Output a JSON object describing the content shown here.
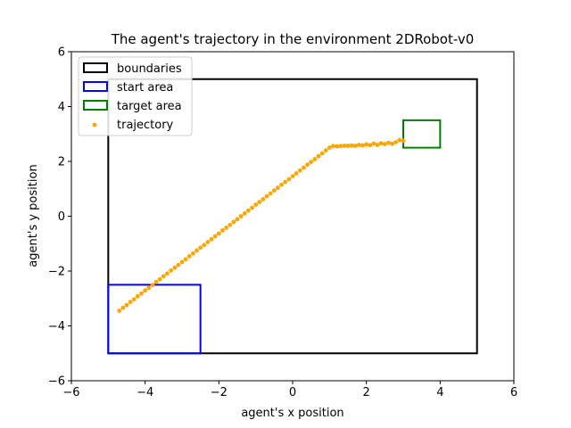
{
  "chart_data": {
    "type": "scatter",
    "title": "The agent's trajectory in the environment 2DRobot-v0",
    "xlabel": "agent's x position",
    "ylabel": "agent's y position",
    "xlim": [
      -6,
      6
    ],
    "ylim": [
      -6,
      6
    ],
    "xticks": [
      -6,
      -4,
      -2,
      0,
      2,
      4,
      6
    ],
    "yticks": [
      -6,
      -4,
      -2,
      0,
      2,
      4,
      6
    ],
    "xtick_labels": [
      "−6",
      "−4",
      "−2",
      "0",
      "2",
      "4",
      "6"
    ],
    "ytick_labels": [
      "−6",
      "−4",
      "−2",
      "0",
      "2",
      "4",
      "6"
    ],
    "grid": false,
    "legend_position": "top-left",
    "regions": [
      {
        "name": "boundaries",
        "x0": -5,
        "y0": -5,
        "x1": 5,
        "y1": 5,
        "color": "#000000"
      },
      {
        "name": "start area",
        "x0": -5,
        "y0": -5,
        "x1": -2.5,
        "y1": -2.5,
        "color": "#0000ff"
      },
      {
        "name": "target area",
        "x0": 3,
        "y0": 2.5,
        "x1": 4,
        "y1": 3.5,
        "color": "#008000"
      }
    ],
    "series": [
      {
        "name": "trajectory",
        "color": "#ffa500",
        "x": [
          -4.7,
          -4.6,
          -4.5,
          -4.4,
          -4.3,
          -4.2,
          -4.1,
          -4.0,
          -3.9,
          -3.8,
          -3.7,
          -3.6,
          -3.5,
          -3.4,
          -3.3,
          -3.2,
          -3.1,
          -3.0,
          -2.9,
          -2.8,
          -2.7,
          -2.6,
          -2.5,
          -2.4,
          -2.3,
          -2.2,
          -2.1,
          -2.0,
          -1.9,
          -1.8,
          -1.7,
          -1.6,
          -1.5,
          -1.4,
          -1.3,
          -1.2,
          -1.1,
          -1.0,
          -0.9,
          -0.8,
          -0.7,
          -0.6,
          -0.5,
          -0.4,
          -0.3,
          -0.2,
          -0.1,
          0.0,
          0.1,
          0.2,
          0.3,
          0.4,
          0.5,
          0.6,
          0.7,
          0.8,
          0.9,
          1.0,
          1.1,
          1.2,
          1.3,
          1.4,
          1.5,
          1.6,
          1.7,
          1.8,
          1.9,
          2.0,
          2.1,
          2.2,
          2.3,
          2.4,
          2.5,
          2.6,
          2.7,
          2.8,
          2.9,
          3.0
        ],
        "y": [
          -3.45,
          -3.34,
          -3.24,
          -3.13,
          -3.03,
          -2.92,
          -2.82,
          -2.71,
          -2.61,
          -2.51,
          -2.4,
          -2.3,
          -2.19,
          -2.09,
          -1.98,
          -1.88,
          -1.78,
          -1.67,
          -1.57,
          -1.46,
          -1.36,
          -1.25,
          -1.15,
          -1.05,
          -0.94,
          -0.84,
          -0.73,
          -0.63,
          -0.52,
          -0.42,
          -0.32,
          -0.21,
          -0.11,
          0.0,
          0.1,
          0.21,
          0.31,
          0.42,
          0.52,
          0.62,
          0.73,
          0.83,
          0.94,
          1.04,
          1.15,
          1.25,
          1.35,
          1.46,
          1.56,
          1.67,
          1.77,
          1.88,
          1.98,
          2.08,
          2.19,
          2.29,
          2.4,
          2.5,
          2.56,
          2.55,
          2.56,
          2.57,
          2.57,
          2.58,
          2.57,
          2.6,
          2.58,
          2.62,
          2.59,
          2.65,
          2.6,
          2.66,
          2.63,
          2.68,
          2.64,
          2.7,
          2.78,
          2.75
        ]
      }
    ]
  }
}
